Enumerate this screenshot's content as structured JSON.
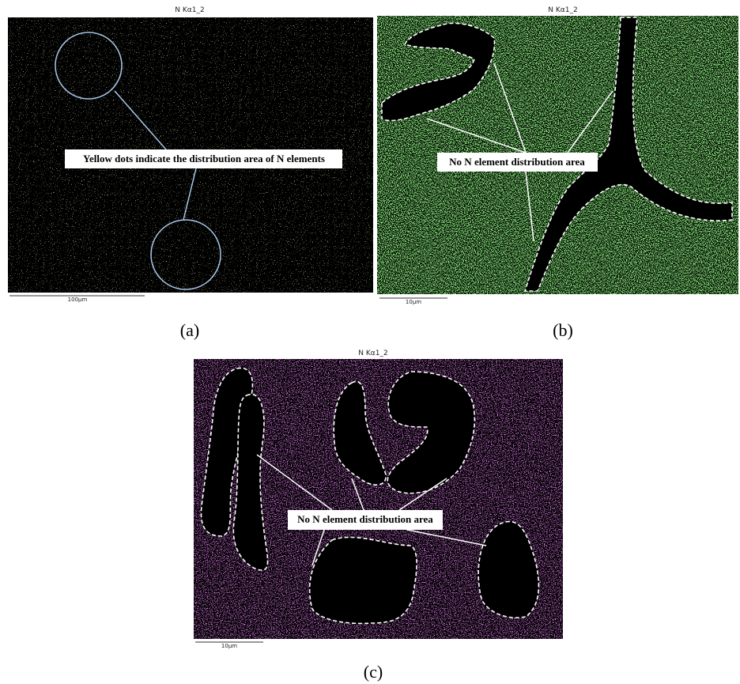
{
  "panels": [
    {
      "title": "N Kα1_2",
      "scale_label": "100μm",
      "annotation": "Yellow dots indicate the distribution area of N elements",
      "caption": "(a)"
    },
    {
      "title": "N Kα1_2",
      "scale_label": "10μm",
      "annotation": "No N element distribution area",
      "caption": "(b)"
    },
    {
      "title": "N Kα1_2",
      "scale_label": "10μm",
      "annotation": "No N element distribution area",
      "caption": "(c)"
    }
  ]
}
